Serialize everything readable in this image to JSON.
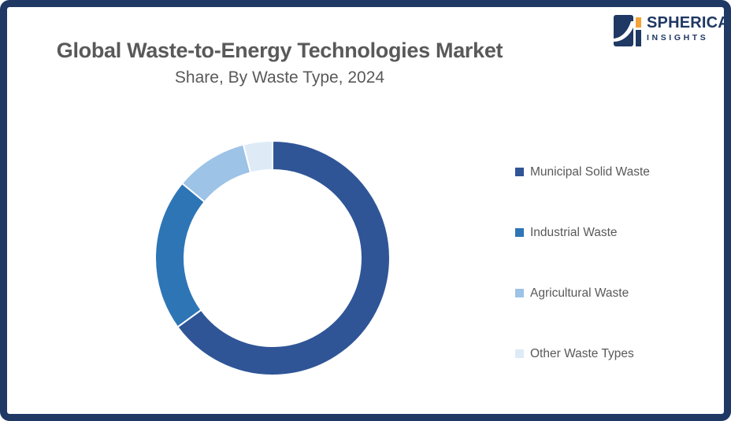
{
  "frame": {
    "border_color": "#1F3864",
    "background_color": "#FFFFFF"
  },
  "header": {
    "title": "Global Waste-to-Energy Technologies Market",
    "subtitle": "Share, By Waste Type, 2024",
    "text_color": "#595959"
  },
  "logo": {
    "line1": "SPHERICAL",
    "line2": "INSIGHTS",
    "navy": "#1F3864",
    "orange": "#F2A33C"
  },
  "chart_data": {
    "type": "pie",
    "subtype": "donut",
    "title": "Global Waste-to-Energy Technologies Market Share, By Waste Type, 2024",
    "categories": [
      "Municipal Solid Waste",
      "Industrial Waste",
      "Agricultural Waste",
      "Other Waste Types"
    ],
    "values": [
      65,
      21,
      10,
      4
    ],
    "unit": "% share (estimated from arc angles; no data labels shown)",
    "colors": [
      "#2F5597",
      "#2E75B6",
      "#9DC3E6",
      "#DEEBF7"
    ],
    "start_angle_deg": 0,
    "direction": "clockwise",
    "inner_radius_ratio": 0.75,
    "segment_gap_color": "#FFFFFF",
    "legend_position": "right",
    "data_labels": false
  },
  "legend": {
    "items": [
      {
        "label": "Municipal Solid Waste",
        "color": "#2F5597"
      },
      {
        "label": "Industrial Waste",
        "color": "#2E75B6"
      },
      {
        "label": "Agricultural Waste",
        "color": "#9DC3E6"
      },
      {
        "label": "Other Waste Types",
        "color": "#DEEBF7"
      }
    ]
  }
}
